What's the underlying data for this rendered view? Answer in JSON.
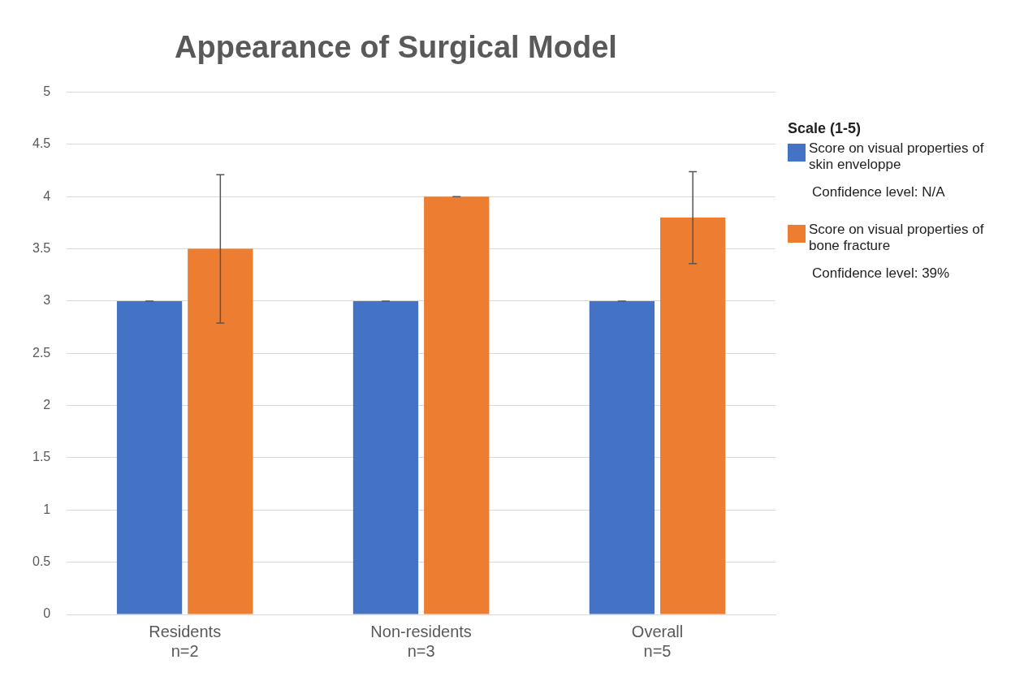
{
  "chart_data": {
    "type": "bar",
    "title": "Appearance of Surgical Model",
    "legend_title": "Scale (1-5)",
    "categories": [
      "Residents\nn=2",
      "Non-residents\nn=3",
      "Overall\nn=5"
    ],
    "series": [
      {
        "name": "Score on visual properties of skin enveloppe",
        "color": "#4472c4",
        "values": [
          3,
          3,
          3
        ],
        "errors": [
          0,
          0,
          0
        ]
      },
      {
        "name": "Score on visual properties of bone fracture",
        "color": "#ed7d31",
        "values": [
          3.5,
          4,
          3.8
        ],
        "errors": [
          0.71,
          0,
          0.44
        ]
      }
    ],
    "annotations": [
      "Confidence level: N/A",
      "Confidence level: 39%"
    ],
    "ylim": [
      0,
      5
    ],
    "yticks": [
      0,
      0.5,
      1,
      1.5,
      2,
      2.5,
      3,
      3.5,
      4,
      4.5,
      5
    ],
    "grid": "y",
    "legend": "right"
  }
}
